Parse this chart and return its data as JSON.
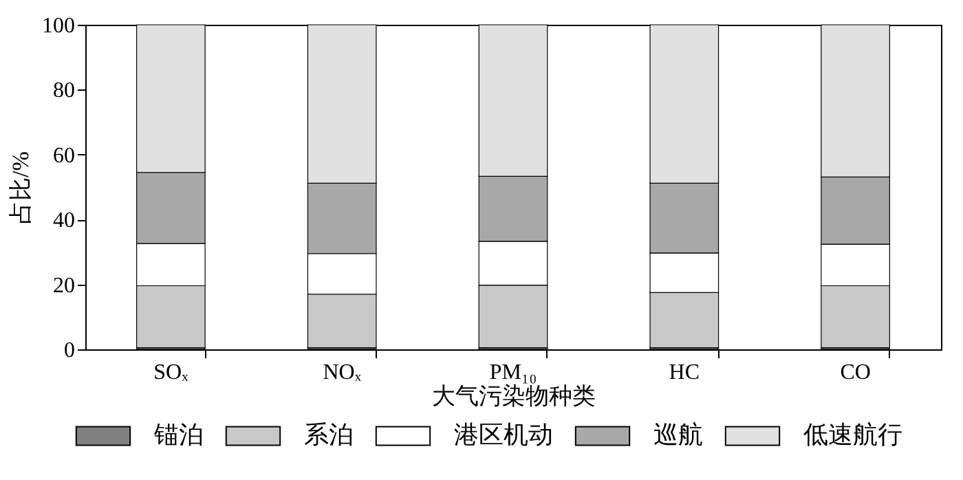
{
  "chart_data": {
    "type": "bar",
    "stacked": true,
    "xlabel": "大气污染物种类",
    "ylabel": "占比/%",
    "categories": [
      "SOₓ",
      "NOₓ",
      "PM₁₀",
      "HC",
      "CO"
    ],
    "series": [
      {
        "name": "锚泊",
        "color": "#808080",
        "values": [
          0.5,
          0.5,
          0.5,
          0.5,
          0.5
        ]
      },
      {
        "name": "系泊",
        "color": "#c8c8c8",
        "values": [
          19.1,
          16.5,
          19.3,
          17.0,
          19.1
        ]
      },
      {
        "name": "港区机动",
        "color": "#ffffff",
        "values": [
          13.0,
          12.5,
          13.5,
          12.2,
          12.8
        ]
      },
      {
        "name": "巡航",
        "color": "#a8a8a8",
        "values": [
          21.9,
          21.7,
          20.0,
          21.5,
          20.7
        ]
      },
      {
        "name": "低速航行",
        "color": "#e0e0e0",
        "values": [
          45.5,
          48.8,
          46.7,
          48.8,
          46.9
        ]
      }
    ],
    "ylim": [
      0,
      100
    ],
    "yticks": [
      0,
      20,
      40,
      60,
      80,
      100
    ],
    "grid": false,
    "legend": "bottom"
  }
}
